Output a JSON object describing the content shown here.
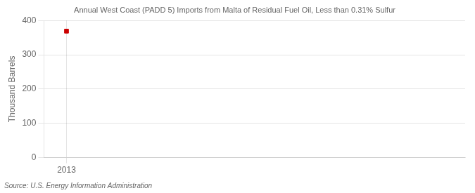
{
  "chart_data": {
    "type": "scatter",
    "title": "Annual West Coast (PADD 5) Imports from Malta of Residual Fuel Oil, Less than 0.31% Sulfur",
    "ylabel": "Thousand Barrels",
    "source": "Source: U.S. Energy Information Administration",
    "x": [
      2013
    ],
    "values": [
      369
    ],
    "color": "#cc0000",
    "marker": "square",
    "xlim": [
      2012.4,
      2023.6
    ],
    "xticks": [
      2013
    ],
    "ylim": [
      0,
      400
    ],
    "yticks": [
      0,
      100,
      200,
      300,
      400
    ],
    "grid": true
  }
}
